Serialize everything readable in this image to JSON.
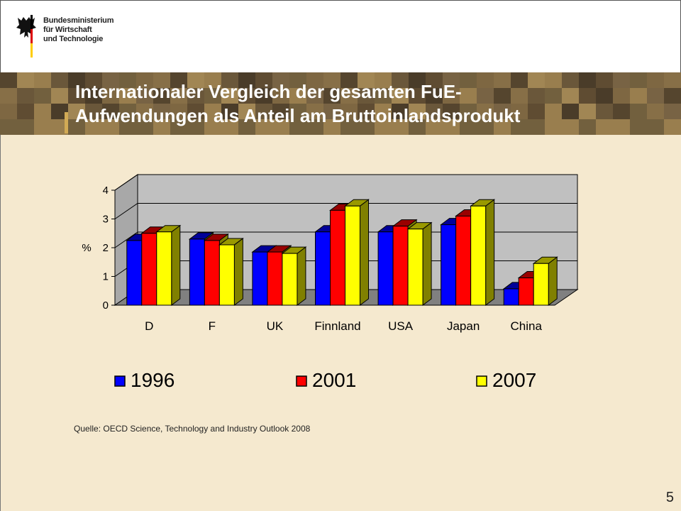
{
  "header": {
    "ministry_lines": [
      "Bundesministerium",
      "für Wirtschaft",
      "und Technologie"
    ]
  },
  "slide": {
    "title_lines": [
      "Internationaler Vergleich der gesamten FuE-",
      "Aufwendungen als Anteil am Bruttoinlandsprodukt"
    ],
    "source": "Quelle: OECD Science, Technology and Industry Outlook 2008",
    "page_number": "5"
  },
  "colors": {
    "series_1996": "#0000ff",
    "series_2001": "#ff0000",
    "series_2007": "#ffff00",
    "plot_wall": "#c0c0c0",
    "plot_floor": "#808080",
    "side_face": "#808000"
  },
  "chart_data": {
    "type": "bar",
    "title": "",
    "xlabel": "",
    "ylabel": "%",
    "ylim": [
      0,
      4
    ],
    "yticks": [
      0,
      1,
      2,
      3,
      4
    ],
    "categories": [
      "D",
      "F",
      "UK",
      "Finnland",
      "USA",
      "Japan",
      "China"
    ],
    "series": [
      {
        "name": "1996",
        "color": "#0000ff",
        "values": [
          2.25,
          2.3,
          1.85,
          2.55,
          2.55,
          2.8,
          0.57
        ]
      },
      {
        "name": "2001",
        "color": "#ff0000",
        "values": [
          2.5,
          2.25,
          1.85,
          3.3,
          2.75,
          3.1,
          0.95
        ]
      },
      {
        "name": "2007",
        "color": "#ffff00",
        "values": [
          2.55,
          2.1,
          1.8,
          3.45,
          2.65,
          3.45,
          1.45
        ]
      }
    ],
    "legend_position": "bottom",
    "grid": true,
    "style": "3d-clustered-column"
  }
}
